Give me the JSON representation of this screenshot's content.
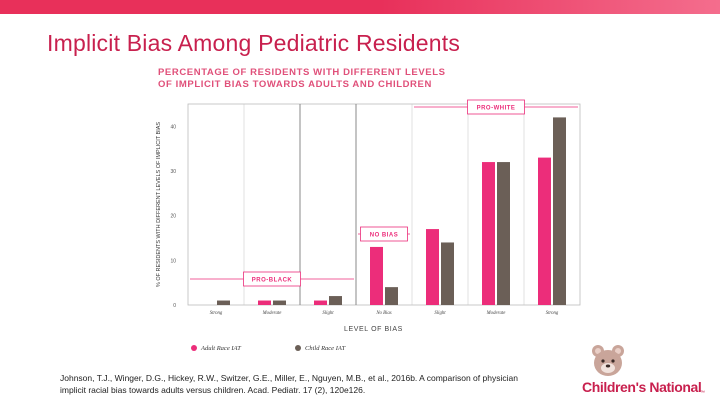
{
  "slide": {
    "title": "Implicit Bias Among Pediatric Residents",
    "citation": "Johnson, T.J., Winger, D.G., Hickey, R.W., Switzer, G.E., Miller, E., Nguyen, M.B., et al., 2016b. A comparison of physician implicit racial bias towards adults versus children. Acad. Pediatr. 17 (2), 120e126.",
    "logo_text": "Children's National",
    "logo_tm": "™"
  },
  "colors": {
    "accent": "#e8305a",
    "adult": "#ec2d7a",
    "child": "#6b5f57",
    "chart_title": "#e0507a"
  },
  "chart_data": {
    "type": "bar",
    "title_line1": "PERCENTAGE OF RESIDENTS WITH DIFFERENT LEVELS",
    "title_line2": "OF IMPLICIT BIAS TOWARDS ADULTS AND CHILDREN",
    "ylabel": "% OF RESIDENTS WITH DIFFERENT LEVELS OF IMPLICIT BIAS",
    "xlabel": "LEVEL OF BIAS",
    "ylim": [
      0,
      45
    ],
    "yticks": [
      0,
      10,
      20,
      30,
      40
    ],
    "ytick_labels": [
      "0",
      "10",
      "20",
      "30",
      "40"
    ],
    "categories": [
      "Strong",
      "Moderate",
      "Slight",
      "No Bias",
      "Slight",
      "Moderate",
      "Strong"
    ],
    "series": [
      {
        "name": "Adult Race IAT",
        "values": [
          0,
          1,
          1,
          13,
          17,
          32,
          33
        ]
      },
      {
        "name": "Child Race IAT",
        "values": [
          1,
          1,
          2,
          4,
          14,
          32,
          42
        ]
      }
    ],
    "regions": [
      {
        "label": "PRO-BLACK",
        "from": 0,
        "to": 2
      },
      {
        "label": "NO BIAS",
        "from": 3,
        "to": 3
      },
      {
        "label": "PRO-WHITE",
        "from": 4,
        "to": 6
      }
    ],
    "legend": [
      "Adult Race IAT",
      "Child Race IAT"
    ],
    "legend_position": "bottom-left",
    "grid": false
  }
}
